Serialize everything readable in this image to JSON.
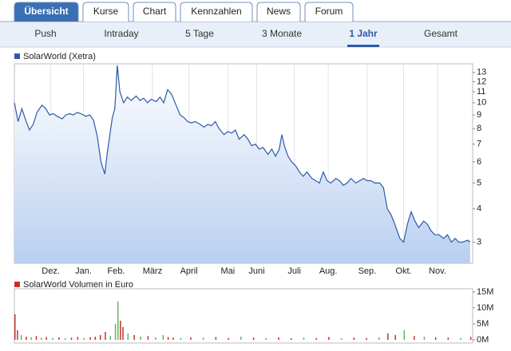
{
  "tabs": [
    "Übersicht",
    "Kurse",
    "Chart",
    "Kennzahlen",
    "News",
    "Forum"
  ],
  "active_tab": "Übersicht",
  "periods": [
    "Push",
    "Intraday",
    "5 Tage",
    "3 Monate",
    "1 Jahr",
    "Gesamt"
  ],
  "active_period": "1 Jahr",
  "chart_data": [
    {
      "type": "line",
      "log_scale": true,
      "fill_area": true,
      "x": [
        0,
        3,
        6,
        9,
        12,
        15,
        18,
        22,
        25,
        28,
        31,
        34,
        38,
        41,
        44,
        47,
        50,
        53,
        57,
        60,
        63,
        66,
        69,
        72,
        74,
        78,
        80,
        82,
        84,
        87,
        90,
        93,
        97,
        100,
        103,
        106,
        109,
        113,
        116,
        119,
        122,
        125,
        128,
        132,
        135,
        138,
        141,
        144,
        148,
        151,
        154,
        157,
        160,
        163,
        167,
        170,
        173,
        176,
        179,
        183,
        186,
        189,
        192,
        195,
        198,
        202,
        205,
        208,
        211,
        213,
        215,
        218,
        221,
        224,
        227,
        230,
        233,
        237,
        240,
        243,
        246,
        249,
        252,
        256,
        259,
        262,
        265,
        268,
        272,
        275,
        278,
        281,
        284,
        287,
        291,
        294,
        297,
        300,
        303,
        307,
        310,
        313,
        316,
        319,
        322,
        326,
        329,
        332,
        335,
        338,
        342,
        345,
        348,
        351,
        354,
        357,
        361,
        363
      ],
      "series": [
        {
          "name": "SolarWorld (Xetra)",
          "color": "#2d5aa8",
          "values": [
            10,
            8.5,
            9.5,
            8.6,
            7.9,
            8.3,
            9.2,
            9.8,
            9.5,
            9.0,
            9.1,
            8.9,
            8.7,
            9.0,
            9.1,
            9.0,
            9.2,
            9.1,
            8.9,
            9.0,
            8.6,
            7.5,
            6.0,
            5.4,
            6.5,
            8.8,
            9.5,
            13.8,
            11.0,
            10.0,
            10.5,
            10.2,
            10.6,
            10.2,
            10.4,
            10.0,
            10.3,
            10.1,
            10.5,
            10.0,
            11.2,
            10.8,
            10.0,
            9.0,
            8.8,
            8.5,
            8.4,
            8.5,
            8.3,
            8.1,
            8.3,
            8.2,
            8.5,
            8.0,
            7.6,
            7.8,
            7.7,
            7.9,
            7.3,
            7.6,
            7.3,
            6.9,
            7.0,
            6.7,
            6.8,
            6.4,
            6.7,
            6.3,
            6.7,
            7.6,
            6.9,
            6.3,
            6.0,
            5.8,
            5.5,
            5.3,
            5.5,
            5.2,
            5.1,
            5.0,
            5.5,
            5.1,
            5.0,
            5.2,
            5.1,
            4.9,
            5.0,
            5.2,
            5.0,
            5.1,
            5.2,
            5.1,
            5.1,
            5.0,
            5.0,
            4.8,
            4.0,
            3.8,
            3.5,
            3.1,
            3.0,
            3.5,
            3.9,
            3.6,
            3.4,
            3.6,
            3.5,
            3.3,
            3.2,
            3.2,
            3.1,
            3.2,
            3.0,
            3.1,
            3.0,
            3.0,
            3.05,
            3.0
          ]
        }
      ],
      "xlim": [
        0,
        365
      ],
      "xticks": [
        {
          "value": 29,
          "label": "Dez."
        },
        {
          "value": 55,
          "label": "Jan."
        },
        {
          "value": 81,
          "label": "Feb."
        },
        {
          "value": 110,
          "label": "März"
        },
        {
          "value": 139,
          "label": "April"
        },
        {
          "value": 170,
          "label": "Mai"
        },
        {
          "value": 193,
          "label": "Juni"
        },
        {
          "value": 223,
          "label": "Juli"
        },
        {
          "value": 250,
          "label": "Aug."
        },
        {
          "value": 281,
          "label": "Sep."
        },
        {
          "value": 310,
          "label": "Okt."
        },
        {
          "value": 337,
          "label": "Nov."
        }
      ],
      "ylim": [
        2.5,
        14
      ],
      "yticks": [
        3,
        4,
        5,
        6,
        7,
        8,
        9,
        10,
        11,
        12,
        13
      ]
    },
    {
      "type": "bar",
      "x": [
        0,
        2,
        5,
        9,
        13,
        17,
        21,
        25,
        30,
        35,
        40,
        45,
        50,
        55,
        60,
        64,
        68,
        72,
        76,
        80,
        82,
        84,
        86,
        90,
        95,
        100,
        106,
        112,
        118,
        122,
        126,
        132,
        140,
        150,
        160,
        170,
        180,
        190,
        200,
        210,
        220,
        230,
        240,
        250,
        260,
        270,
        280,
        290,
        297,
        303,
        310,
        318,
        326,
        335,
        345,
        355,
        363
      ],
      "series": [
        {
          "name": "SolarWorld Volumen in Euro",
          "color": "#c9302c",
          "values": [
            8000000,
            3000000,
            1500000,
            1000000,
            800000,
            1200000,
            700000,
            900000,
            600000,
            800000,
            500000,
            700000,
            900000,
            600000,
            800000,
            1000000,
            1500000,
            2500000,
            1200000,
            5000000,
            12000000,
            6000000,
            4000000,
            2000000,
            1500000,
            1000000,
            1200000,
            800000,
            1500000,
            900000,
            700000,
            600000,
            800000,
            700000,
            900000,
            600000,
            1000000,
            700000,
            600000,
            800000,
            500000,
            700000,
            600000,
            900000,
            500000,
            700000,
            600000,
            800000,
            2000000,
            1500000,
            3000000,
            1200000,
            1000000,
            800000,
            700000,
            600000,
            900000
          ],
          "colors": [
            "#c9302c",
            "#c9302c",
            "#5cb85c",
            "#c9302c",
            "#5cb85c",
            "#c9302c",
            "#5cb85c",
            "#c9302c",
            "#5cb85c",
            "#c9302c",
            "#5cb85c",
            "#c9302c",
            "#c9302c",
            "#5cb85c",
            "#c9302c",
            "#c9302c",
            "#c9302c",
            "#c9302c",
            "#5cb85c",
            "#5cb85c",
            "#5cb85c",
            "#c9302c",
            "#c9302c",
            "#5cb85c",
            "#c9302c",
            "#5cb85c",
            "#c9302c",
            "#5cb85c",
            "#5cb85c",
            "#c9302c",
            "#c9302c",
            "#5cb85c",
            "#c9302c",
            "#5cb85c",
            "#c9302c",
            "#c9302c",
            "#5cb85c",
            "#c9302c",
            "#5cb85c",
            "#c9302c",
            "#c9302c",
            "#5cb85c",
            "#c9302c",
            "#c9302c",
            "#5cb85c",
            "#c9302c",
            "#c9302c",
            "#5cb85c",
            "#c9302c",
            "#c9302c",
            "#5cb85c",
            "#c9302c",
            "#5cb85c",
            "#c9302c",
            "#c9302c",
            "#5cb85c",
            "#c9302c"
          ]
        }
      ],
      "xlim": [
        0,
        365
      ],
      "ylim": [
        0,
        15000000
      ],
      "yticks": [
        {
          "value": 0,
          "label": "0M"
        },
        {
          "value": 5000000,
          "label": "5M"
        },
        {
          "value": 10000000,
          "label": "10M"
        },
        {
          "value": 15000000,
          "label": "15M"
        }
      ]
    }
  ]
}
